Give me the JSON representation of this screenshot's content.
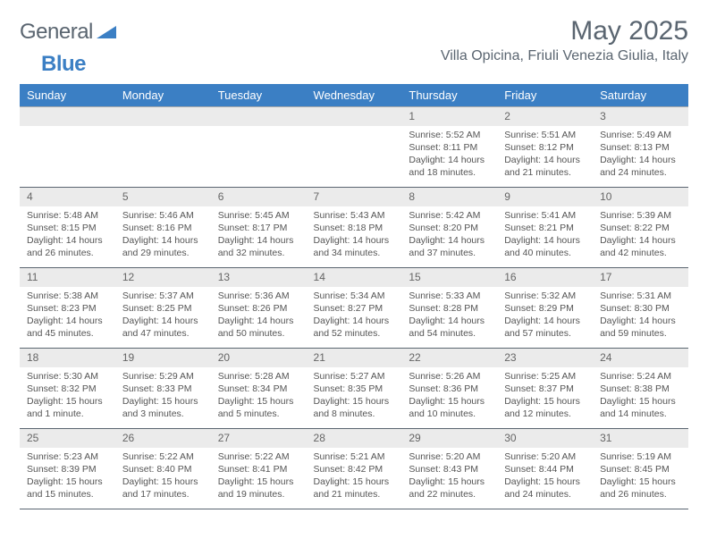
{
  "logo": {
    "word1": "General",
    "word2": "Blue"
  },
  "title": "May 2025",
  "location": "Villa Opicina, Friuli Venezia Giulia, Italy",
  "colors": {
    "header_bg": "#3b7fc4",
    "header_text": "#ffffff",
    "daynum_bg": "#ebebeb",
    "text": "#555555",
    "border": "#5a6570"
  },
  "weekdays": [
    "Sunday",
    "Monday",
    "Tuesday",
    "Wednesday",
    "Thursday",
    "Friday",
    "Saturday"
  ],
  "weeks": [
    [
      {
        "n": "",
        "sr": "",
        "ss": "",
        "dl": ""
      },
      {
        "n": "",
        "sr": "",
        "ss": "",
        "dl": ""
      },
      {
        "n": "",
        "sr": "",
        "ss": "",
        "dl": ""
      },
      {
        "n": "",
        "sr": "",
        "ss": "",
        "dl": ""
      },
      {
        "n": "1",
        "sr": "5:52 AM",
        "ss": "8:11 PM",
        "dl": "14 hours and 18 minutes."
      },
      {
        "n": "2",
        "sr": "5:51 AM",
        "ss": "8:12 PM",
        "dl": "14 hours and 21 minutes."
      },
      {
        "n": "3",
        "sr": "5:49 AM",
        "ss": "8:13 PM",
        "dl": "14 hours and 24 minutes."
      }
    ],
    [
      {
        "n": "4",
        "sr": "5:48 AM",
        "ss": "8:15 PM",
        "dl": "14 hours and 26 minutes."
      },
      {
        "n": "5",
        "sr": "5:46 AM",
        "ss": "8:16 PM",
        "dl": "14 hours and 29 minutes."
      },
      {
        "n": "6",
        "sr": "5:45 AM",
        "ss": "8:17 PM",
        "dl": "14 hours and 32 minutes."
      },
      {
        "n": "7",
        "sr": "5:43 AM",
        "ss": "8:18 PM",
        "dl": "14 hours and 34 minutes."
      },
      {
        "n": "8",
        "sr": "5:42 AM",
        "ss": "8:20 PM",
        "dl": "14 hours and 37 minutes."
      },
      {
        "n": "9",
        "sr": "5:41 AM",
        "ss": "8:21 PM",
        "dl": "14 hours and 40 minutes."
      },
      {
        "n": "10",
        "sr": "5:39 AM",
        "ss": "8:22 PM",
        "dl": "14 hours and 42 minutes."
      }
    ],
    [
      {
        "n": "11",
        "sr": "5:38 AM",
        "ss": "8:23 PM",
        "dl": "14 hours and 45 minutes."
      },
      {
        "n": "12",
        "sr": "5:37 AM",
        "ss": "8:25 PM",
        "dl": "14 hours and 47 minutes."
      },
      {
        "n": "13",
        "sr": "5:36 AM",
        "ss": "8:26 PM",
        "dl": "14 hours and 50 minutes."
      },
      {
        "n": "14",
        "sr": "5:34 AM",
        "ss": "8:27 PM",
        "dl": "14 hours and 52 minutes."
      },
      {
        "n": "15",
        "sr": "5:33 AM",
        "ss": "8:28 PM",
        "dl": "14 hours and 54 minutes."
      },
      {
        "n": "16",
        "sr": "5:32 AM",
        "ss": "8:29 PM",
        "dl": "14 hours and 57 minutes."
      },
      {
        "n": "17",
        "sr": "5:31 AM",
        "ss": "8:30 PM",
        "dl": "14 hours and 59 minutes."
      }
    ],
    [
      {
        "n": "18",
        "sr": "5:30 AM",
        "ss": "8:32 PM",
        "dl": "15 hours and 1 minute."
      },
      {
        "n": "19",
        "sr": "5:29 AM",
        "ss": "8:33 PM",
        "dl": "15 hours and 3 minutes."
      },
      {
        "n": "20",
        "sr": "5:28 AM",
        "ss": "8:34 PM",
        "dl": "15 hours and 5 minutes."
      },
      {
        "n": "21",
        "sr": "5:27 AM",
        "ss": "8:35 PM",
        "dl": "15 hours and 8 minutes."
      },
      {
        "n": "22",
        "sr": "5:26 AM",
        "ss": "8:36 PM",
        "dl": "15 hours and 10 minutes."
      },
      {
        "n": "23",
        "sr": "5:25 AM",
        "ss": "8:37 PM",
        "dl": "15 hours and 12 minutes."
      },
      {
        "n": "24",
        "sr": "5:24 AM",
        "ss": "8:38 PM",
        "dl": "15 hours and 14 minutes."
      }
    ],
    [
      {
        "n": "25",
        "sr": "5:23 AM",
        "ss": "8:39 PM",
        "dl": "15 hours and 15 minutes."
      },
      {
        "n": "26",
        "sr": "5:22 AM",
        "ss": "8:40 PM",
        "dl": "15 hours and 17 minutes."
      },
      {
        "n": "27",
        "sr": "5:22 AM",
        "ss": "8:41 PM",
        "dl": "15 hours and 19 minutes."
      },
      {
        "n": "28",
        "sr": "5:21 AM",
        "ss": "8:42 PM",
        "dl": "15 hours and 21 minutes."
      },
      {
        "n": "29",
        "sr": "5:20 AM",
        "ss": "8:43 PM",
        "dl": "15 hours and 22 minutes."
      },
      {
        "n": "30",
        "sr": "5:20 AM",
        "ss": "8:44 PM",
        "dl": "15 hours and 24 minutes."
      },
      {
        "n": "31",
        "sr": "5:19 AM",
        "ss": "8:45 PM",
        "dl": "15 hours and 26 minutes."
      }
    ]
  ],
  "labels": {
    "sunrise": "Sunrise: ",
    "sunset": "Sunset: ",
    "daylight": "Daylight: "
  }
}
